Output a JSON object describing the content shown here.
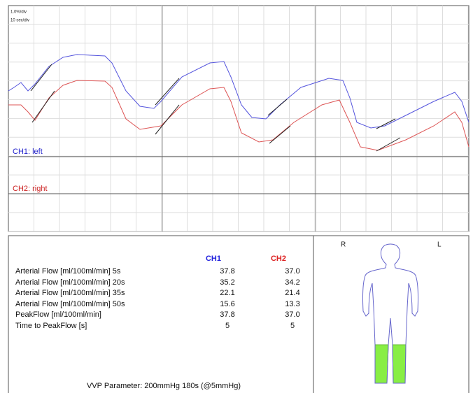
{
  "trace": {
    "scale_y": "1.0%/div",
    "scale_x": "10 sec/div",
    "channels": [
      "CH1:  left",
      "CH2:  right"
    ]
  },
  "results": {
    "columns": [
      "CH1",
      "CH2"
    ],
    "rows": [
      [
        "Arterial Flow [ml/100ml/min] 5s",
        "37.8",
        "37.0"
      ],
      [
        "Arterial Flow [ml/100ml/min] 20s",
        "35.2",
        "34.2"
      ],
      [
        "Arterial Flow [ml/100ml/min] 35s",
        "22.1",
        "21.4"
      ],
      [
        "Arterial Flow [ml/100ml/min] 50s",
        "15.6",
        "13.3"
      ],
      [
        "PeakFlow [ml/100ml/min]",
        "37.8",
        "37.0"
      ],
      [
        "Time to PeakFlow [s]",
        "5",
        "5"
      ]
    ],
    "footer": "VVP Parameter: 200mmHg 180s (@5mmHg)"
  },
  "figure": {
    "right": "R",
    "left": "L"
  }
}
